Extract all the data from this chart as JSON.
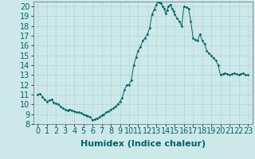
{
  "title": "",
  "xlabel": "Humidex (Indice chaleur)",
  "ylabel": "",
  "bg_color": "#cce8e8",
  "line_color": "#006666",
  "marker_color": "#006666",
  "xlim": [
    -0.5,
    23.5
  ],
  "ylim": [
    8,
    20.5
  ],
  "yticks": [
    8,
    9,
    10,
    11,
    12,
    13,
    14,
    15,
    16,
    17,
    18,
    19,
    20
  ],
  "xticks": [
    0,
    1,
    2,
    3,
    4,
    5,
    6,
    7,
    8,
    9,
    10,
    11,
    12,
    13,
    14,
    15,
    16,
    17,
    18,
    19,
    20,
    21,
    22,
    23
  ],
  "x": [
    0,
    0.25,
    0.5,
    0.75,
    1.0,
    1.25,
    1.5,
    1.75,
    2.0,
    2.25,
    2.5,
    2.75,
    3.0,
    3.25,
    3.5,
    3.75,
    4.0,
    4.25,
    4.5,
    4.75,
    5.0,
    5.25,
    5.5,
    5.75,
    6.0,
    6.25,
    6.5,
    6.75,
    7.0,
    7.25,
    7.5,
    7.75,
    8.0,
    8.25,
    8.5,
    8.75,
    9.0,
    9.25,
    9.5,
    9.75,
    10.0,
    10.25,
    10.5,
    10.75,
    11.0,
    11.25,
    11.5,
    11.75,
    12.0,
    12.25,
    12.5,
    12.75,
    13.0,
    13.15,
    13.3,
    13.5,
    13.7,
    13.85,
    14.0,
    14.15,
    14.3,
    14.5,
    14.7,
    14.85,
    15.0,
    15.25,
    15.5,
    15.75,
    16.0,
    16.25,
    16.5,
    16.75,
    17.0,
    17.25,
    17.5,
    17.75,
    18.0,
    18.25,
    18.5,
    18.75,
    19.0,
    19.25,
    19.5,
    19.75,
    20.0,
    20.25,
    20.5,
    20.75,
    21.0,
    21.25,
    21.5,
    21.75,
    22.0,
    22.25,
    22.5,
    22.75,
    23.0
  ],
  "y": [
    11.0,
    11.1,
    10.8,
    10.5,
    10.3,
    10.4,
    10.5,
    10.2,
    10.1,
    10.0,
    9.8,
    9.6,
    9.5,
    9.4,
    9.5,
    9.4,
    9.3,
    9.2,
    9.2,
    9.1,
    9.0,
    8.9,
    8.8,
    8.7,
    8.4,
    8.5,
    8.6,
    8.7,
    8.9,
    9.0,
    9.2,
    9.3,
    9.5,
    9.6,
    9.8,
    10.0,
    10.3,
    10.7,
    11.5,
    12.0,
    12.0,
    12.5,
    14.0,
    14.8,
    15.5,
    15.9,
    16.5,
    16.8,
    17.2,
    17.8,
    19.2,
    19.7,
    20.2,
    20.5,
    20.4,
    20.3,
    20.0,
    19.8,
    19.3,
    19.6,
    20.0,
    20.2,
    19.8,
    19.5,
    19.2,
    18.8,
    18.5,
    18.0,
    20.0,
    19.9,
    19.8,
    18.5,
    16.8,
    16.6,
    16.5,
    17.2,
    16.5,
    16.2,
    15.5,
    15.2,
    15.0,
    14.7,
    14.5,
    14.0,
    13.0,
    13.1,
    13.2,
    13.1,
    13.0,
    13.1,
    13.2,
    13.1,
    13.0,
    13.1,
    13.2,
    13.0,
    13.0
  ],
  "grid_color": "#b0d8d8",
  "xlabel_fontsize": 8,
  "tick_fontsize": 7
}
